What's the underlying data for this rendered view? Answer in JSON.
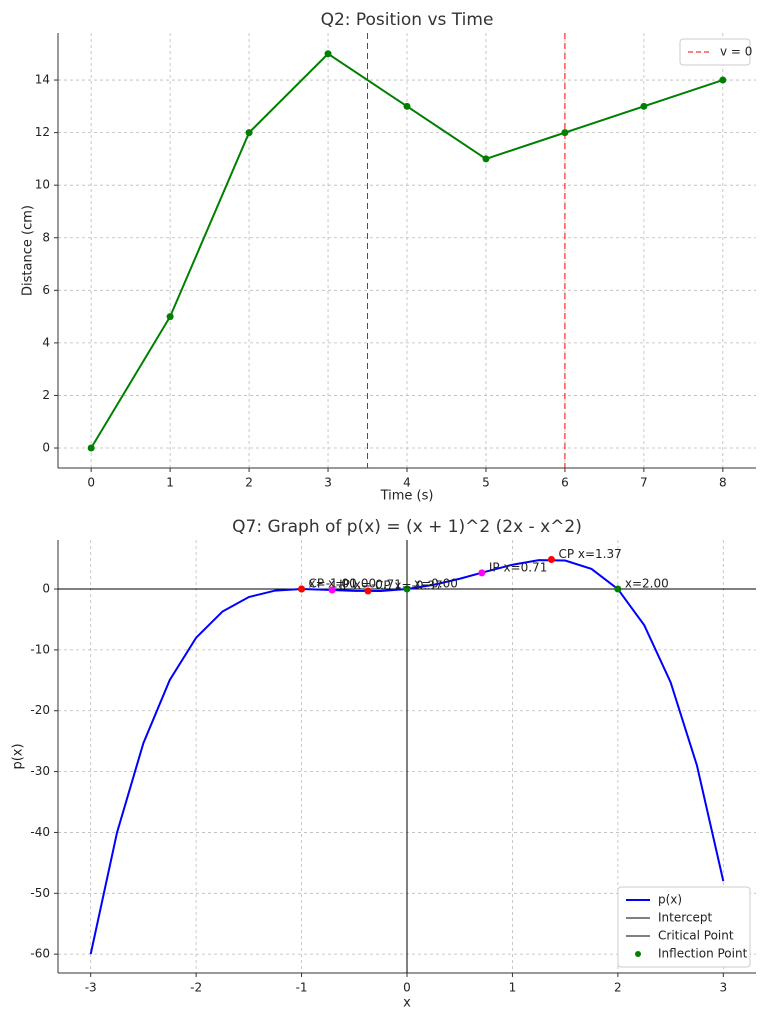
{
  "chart_data": [
    {
      "type": "line",
      "title": "Q2: Position vs Time",
      "x_label": "Time (s)",
      "y_label": "Distance (cm)",
      "x": [
        0,
        1,
        2,
        3,
        4,
        5,
        6,
        7,
        8
      ],
      "values": [
        0,
        5,
        12,
        15,
        13,
        11,
        12,
        13,
        14
      ],
      "color": "#008000",
      "markers": true,
      "xlim": [
        -0.42,
        8.42
      ],
      "ylim": [
        -0.76,
        15.79
      ],
      "xticks": [
        0,
        1,
        2,
        3,
        4,
        5,
        6,
        7,
        8
      ],
      "yticks": [
        0,
        2,
        4,
        6,
        8,
        10,
        12,
        14
      ],
      "grid": true,
      "vlines": {
        "name": "v = 0",
        "color": "#ff0000",
        "x": [
          3.5,
          6
        ]
      },
      "legend": "upper right"
    },
    {
      "type": "line",
      "title": "Q7: Graph of p(x) = (x + 1)^2 (2x - x^2)",
      "x_label": "x",
      "y_label": "p(x)",
      "series": [
        {
          "name": "p(x)",
          "color": "#0000ff",
          "x": [
            -3,
            -2.75,
            -2.5,
            -2.25,
            -2,
            -1.75,
            -1.5,
            -1.25,
            -1,
            -0.75,
            -0.5,
            -0.25,
            0,
            0.25,
            0.5,
            0.75,
            1,
            1.25,
            1.5,
            1.75,
            2,
            2.25,
            2.5,
            2.75,
            3
          ],
          "values": [
            -60,
            -40,
            -25.31,
            -14.94,
            -8,
            -3.69,
            -1.31,
            -0.25,
            0,
            -0.13,
            -0.31,
            -0.32,
            0,
            0.68,
            1.69,
            2.87,
            4,
            4.75,
            4.69,
            3.31,
            0,
            -5.94,
            -15.31,
            -29,
            -48
          ]
        }
      ],
      "points": [
        {
          "name": "Intercept",
          "color": "#008000",
          "legend_color": "#000000",
          "legend_marker": "line",
          "x": [
            -1,
            0,
            2
          ],
          "values": [
            0,
            0,
            0
          ],
          "labels": [
            "x=-1.00",
            "x=0.00",
            "x=2.00"
          ]
        },
        {
          "name": "Critical Point",
          "color": "#ff0000",
          "legend_color": "#000000",
          "legend_marker": "line",
          "x": [
            -1,
            -0.37,
            1.37
          ],
          "values": [
            0,
            -0.32,
            4.85
          ],
          "labels": [
            "CP x=-1.00",
            "CP x=-0.37",
            "CP x=1.37"
          ]
        },
        {
          "name": "Inflection Point",
          "color": "#ff00ff",
          "legend_color": "#008000",
          "legend_marker": "dot",
          "x": [
            -0.71,
            0.71
          ],
          "values": [
            -0.16,
            2.66
          ],
          "labels": [
            "IP x=-0.71",
            "IP x=0.71"
          ]
        }
      ],
      "zero_lines": true,
      "xlim": [
        -3.31,
        3.31
      ],
      "ylim": [
        -63.1,
        8.06
      ],
      "xticks": [
        -3,
        -2,
        -1,
        0,
        1,
        2,
        3
      ],
      "yticks": [
        -60,
        -50,
        -40,
        -30,
        -20,
        -10,
        0
      ],
      "grid": true,
      "legend": "lower right"
    }
  ]
}
